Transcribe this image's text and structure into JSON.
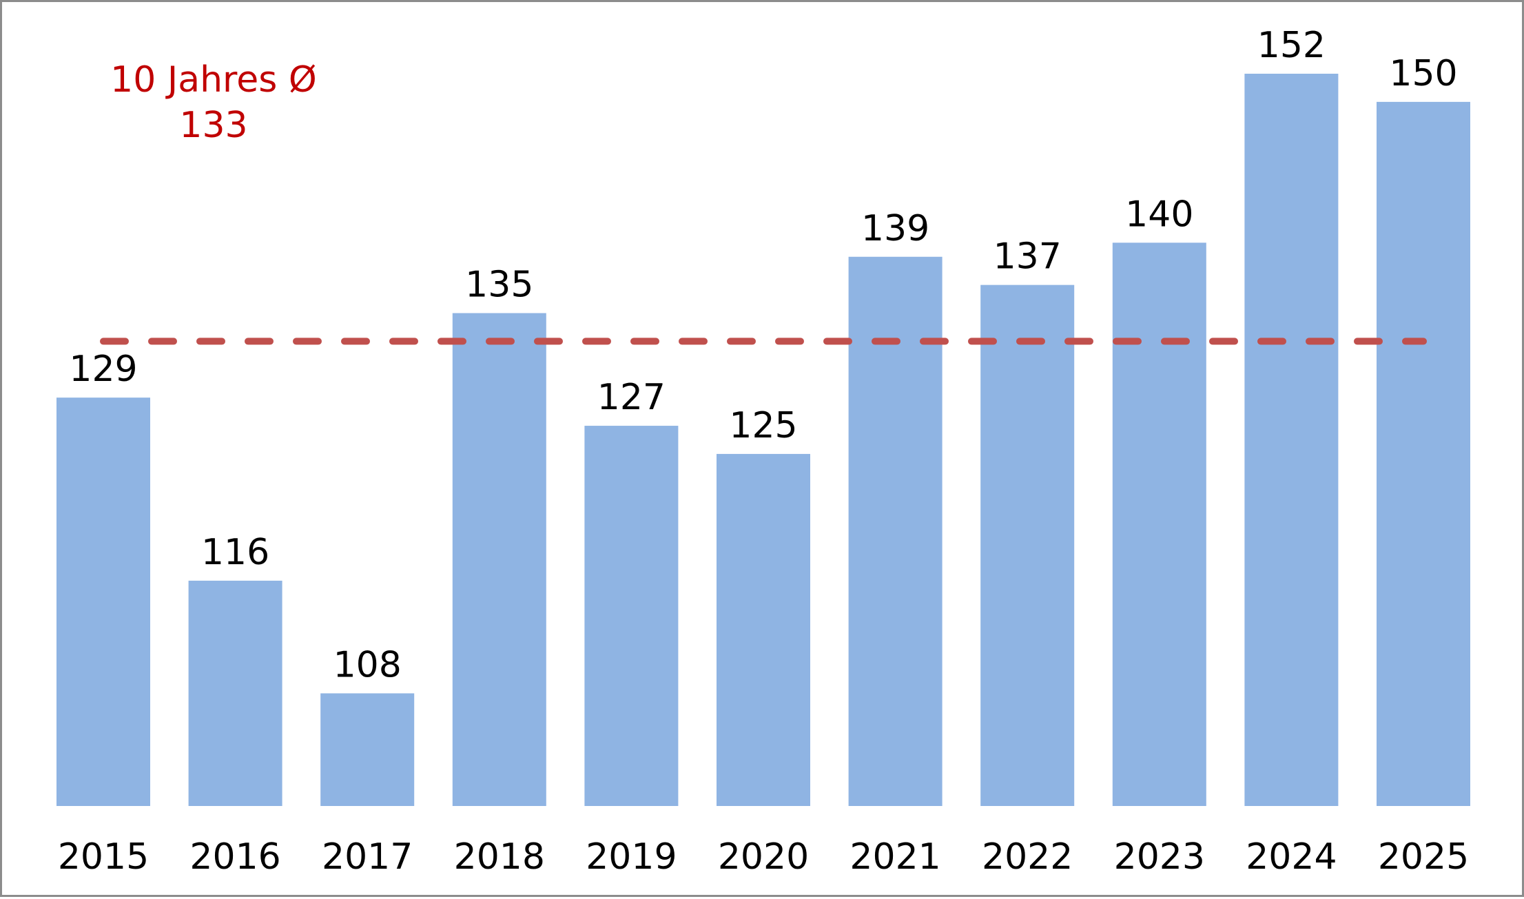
{
  "chart_data": {
    "type": "bar",
    "categories": [
      "2015",
      "2016",
      "2017",
      "2018",
      "2019",
      "2020",
      "2021",
      "2022",
      "2023",
      "2024",
      "2025"
    ],
    "values": [
      129,
      116,
      108,
      135,
      127,
      125,
      139,
      137,
      140,
      152,
      150
    ],
    "data_labels": true,
    "ylim": [
      100,
      152
    ],
    "grid": false,
    "legend": "none",
    "reference_line": {
      "value": 133,
      "style": "dashed",
      "label_line1": "10 Jahres Ø",
      "label_line2": "133"
    },
    "colors": {
      "bar": "#8fb4e3",
      "reference": "#c0504d",
      "reference_text": "#c00000",
      "text": "#000000"
    }
  }
}
